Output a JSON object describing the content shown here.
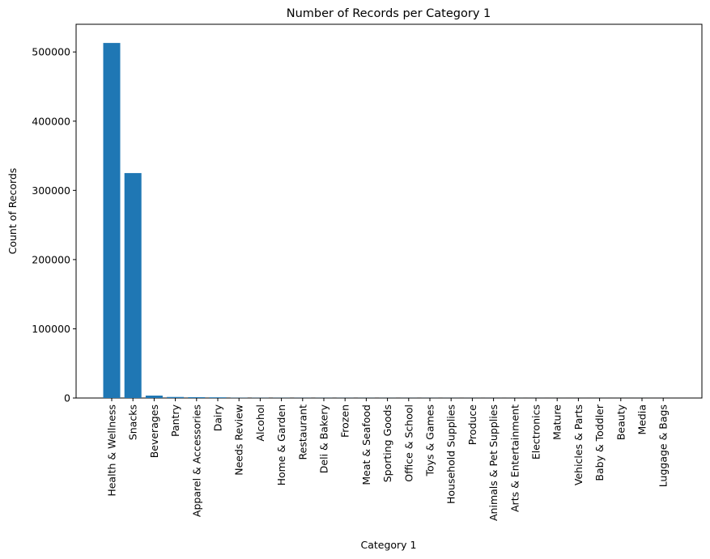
{
  "chart_data": {
    "type": "bar",
    "title": "Number of Records per Category 1",
    "xlabel": "Category 1",
    "ylabel": "Count of Records",
    "ylim": [
      0,
      540000
    ],
    "yticks": [
      0,
      100000,
      200000,
      300000,
      400000,
      500000
    ],
    "ytick_labels": [
      "0",
      "100000",
      "200000",
      "300000",
      "400000",
      "500000"
    ],
    "grid": false,
    "bar_color": "#1f77b4",
    "categories": [
      "Health & Wellness",
      "Snacks",
      "Beverages",
      "Pantry",
      "Apparel & Accessories",
      "Dairy",
      "Needs Review",
      "Alcohol",
      "Home & Garden",
      "Restaurant",
      "Deli & Bakery",
      "Frozen",
      "Meat & Seafood",
      "Sporting Goods",
      "Office & School",
      "Toys & Games",
      "Household Supplies",
      "Produce",
      "Animals & Pet Supplies",
      "Arts & Entertainment",
      "Electronics",
      "Mature",
      "Vehicles & Parts",
      "Baby & Toddler",
      "Beauty",
      "Media",
      "Luggage & Bags"
    ],
    "values": [
      513000,
      325000,
      3500,
      1500,
      1200,
      1000,
      300,
      250,
      200,
      180,
      160,
      150,
      140,
      120,
      110,
      100,
      90,
      80,
      70,
      60,
      50,
      40,
      35,
      30,
      25,
      20,
      10
    ]
  }
}
